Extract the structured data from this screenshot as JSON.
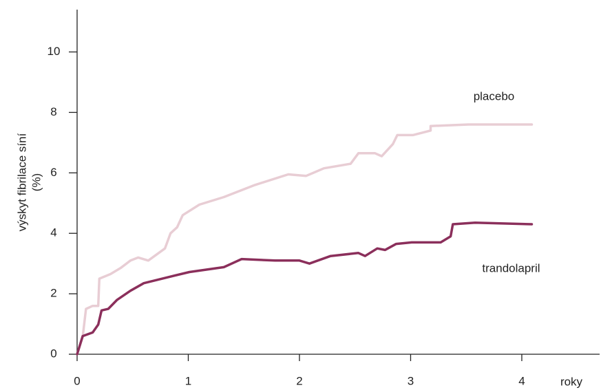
{
  "chart_data": {
    "type": "line",
    "x_label": "roky",
    "y_label": [
      "výskyt fibrilace síní",
      "(%)"
    ],
    "xlim": [
      0,
      4.7
    ],
    "xticks": [
      0,
      1,
      2,
      3,
      4
    ],
    "ylim": [
      0,
      11.4
    ],
    "yticks": [
      0,
      2,
      4,
      6,
      8,
      10
    ],
    "grid": false,
    "series": [
      {
        "name": "placebo",
        "color": "#e8cdd4",
        "x": [
          0,
          0.05,
          0.08,
          0.14,
          0.19,
          0.2,
          0.3,
          0.39,
          0.48,
          0.55,
          0.64,
          0.79,
          0.84,
          0.9,
          0.95,
          1.1,
          1.32,
          1.6,
          1.9,
          2.06,
          2.22,
          2.46,
          2.53,
          2.68,
          2.74,
          2.84,
          2.88,
          3.02,
          3.18,
          3.18,
          3.52,
          4.09
        ],
        "values": [
          0,
          0.57,
          1.5,
          1.6,
          1.6,
          2.5,
          2.65,
          2.85,
          3.1,
          3.2,
          3.1,
          3.5,
          4.0,
          4.2,
          4.6,
          4.95,
          5.2,
          5.6,
          5.95,
          5.9,
          6.15,
          6.3,
          6.65,
          6.65,
          6.55,
          6.95,
          7.25,
          7.25,
          7.4,
          7.55,
          7.6,
          7.6
        ]
      },
      {
        "name": "trandolapril",
        "color": "#8b2f5b",
        "x": [
          0,
          0.05,
          0.14,
          0.19,
          0.22,
          0.28,
          0.36,
          0.48,
          0.6,
          0.82,
          1.01,
          1.32,
          1.48,
          1.78,
          2.0,
          2.09,
          2.28,
          2.53,
          2.59,
          2.7,
          2.77,
          2.87,
          3.01,
          3.27,
          3.36,
          3.38,
          3.58,
          4.09
        ],
        "values": [
          0,
          0.6,
          0.72,
          0.98,
          1.45,
          1.5,
          1.8,
          2.1,
          2.35,
          2.55,
          2.72,
          2.88,
          3.15,
          3.1,
          3.1,
          3.0,
          3.25,
          3.35,
          3.25,
          3.5,
          3.45,
          3.65,
          3.7,
          3.7,
          3.9,
          4.3,
          4.35,
          4.3
        ]
      }
    ]
  }
}
